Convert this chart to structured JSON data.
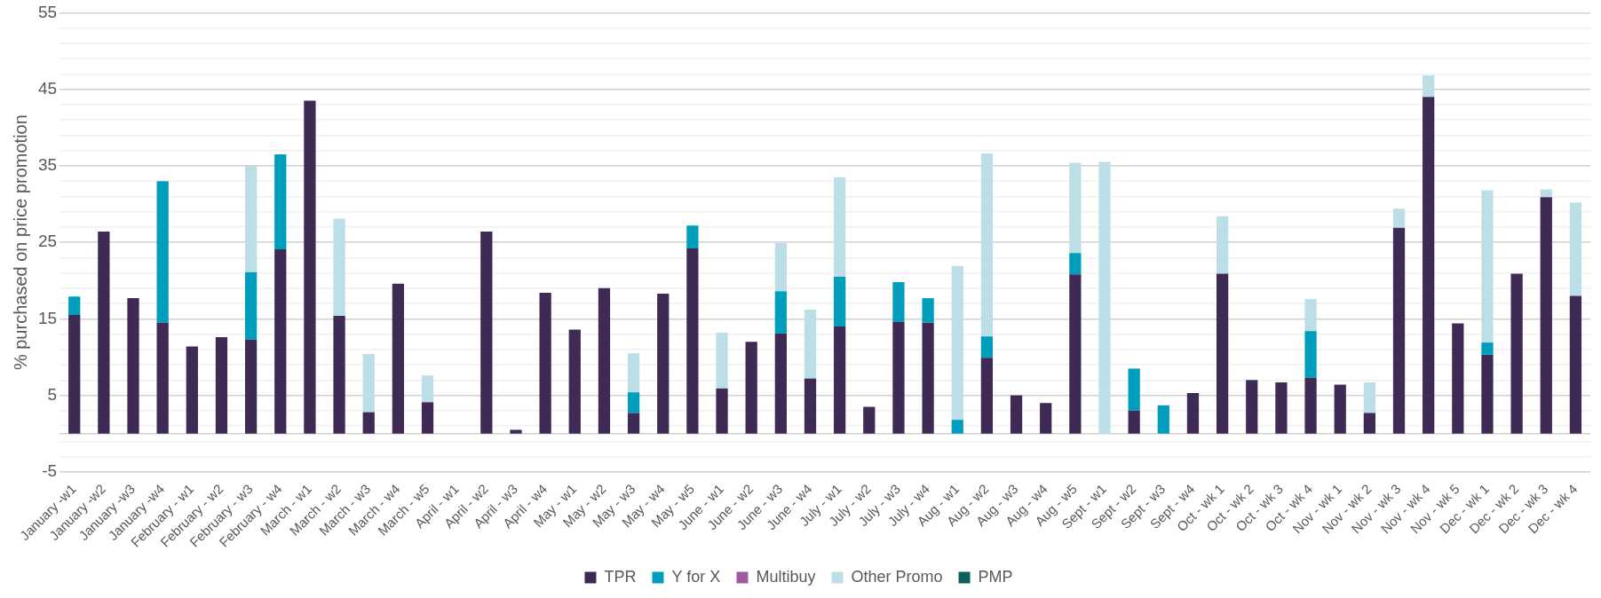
{
  "chart_data": {
    "type": "bar",
    "stacked": true,
    "ylabel": "% purchased on price promotion",
    "categories": [
      "January -w1",
      "January -w2",
      "January -w3",
      "January -w4",
      "February - w1",
      "February - w2",
      "February - w3",
      "February - w4",
      "March - w1",
      "March - w2",
      "March - w3",
      "March - w4",
      "March - w5",
      "April - w1",
      "April - w2",
      "April - w3",
      "April - w4",
      "May - w1",
      "May - w2",
      "May - w3",
      "May - w4",
      "May - w5",
      "June - w1",
      "June - w2",
      "June - w3",
      "June - w4",
      "July - w1",
      "July - w2",
      "July - w3",
      "July - w4",
      "Aug - w1",
      "Aug - w2",
      "Aug - w3",
      "Aug - w4",
      "Aug - w5",
      "Sept - w1",
      "Sept - w2",
      "Sept - w3",
      "Sept - w4",
      "Oct - wk 1",
      "Oct - wk 2",
      "Oct - wk 3",
      "Oct - wk 4",
      "Nov - wk 1",
      "Nov - wk 2",
      "Nov - wk 3",
      "Nov - wk 4",
      "Nov - wk 5",
      "Dec - wk 1",
      "Dec - wk 2",
      "Dec - wk 3",
      "Dec - wk 4"
    ],
    "series": [
      {
        "name": "TPR",
        "color": "#3f2a56",
        "values": [
          15.5,
          26.4,
          17.7,
          14.5,
          11.4,
          12.6,
          12.3,
          24.1,
          43.5,
          15.4,
          2.8,
          19.6,
          4.1,
          0,
          26.4,
          0.5,
          18.4,
          13.6,
          19.0,
          2.7,
          18.3,
          24.2,
          5.9,
          12.0,
          13.1,
          7.2,
          14.0,
          3.5,
          14.6,
          14.5,
          0,
          9.9,
          5.0,
          4.0,
          20.8,
          0,
          3.0,
          0,
          5.3,
          20.9,
          7.0,
          6.7,
          7.3,
          6.4,
          2.7,
          26.9,
          44.0,
          14.4,
          10.3,
          20.9,
          30.9,
          18.0
        ]
      },
      {
        "name": "Y for X",
        "color": "#009ebd",
        "values": [
          2.4,
          0,
          0,
          18.5,
          0,
          0,
          8.8,
          12.4,
          0,
          0,
          0,
          0,
          0,
          0,
          0,
          0,
          0,
          0,
          0,
          2.7,
          0,
          3.0,
          0,
          0,
          5.5,
          0,
          6.5,
          0,
          5.2,
          3.2,
          1.8,
          2.8,
          0,
          0,
          2.8,
          0,
          5.5,
          3.7,
          0,
          0,
          0,
          0,
          6.1,
          0,
          0,
          0,
          0,
          0,
          1.6,
          0,
          0,
          0
        ]
      },
      {
        "name": "Multibuy",
        "color": "#a05ba0",
        "values": [
          0,
          0,
          0,
          0,
          0,
          0,
          0,
          0,
          0,
          0,
          0,
          0,
          0,
          0,
          0,
          0,
          0,
          0,
          0,
          0,
          0,
          0,
          0,
          0,
          0,
          0,
          0,
          0,
          0,
          0,
          0,
          0,
          0,
          0,
          0,
          0,
          0,
          0,
          0,
          0,
          0,
          0,
          0,
          0,
          0,
          0,
          0,
          0,
          0,
          0,
          0,
          0
        ]
      },
      {
        "name": "Other Promo",
        "color": "#bcdee6",
        "values": [
          0,
          0,
          0,
          0,
          0,
          0,
          13.9,
          0,
          0,
          12.7,
          7.6,
          0,
          3.5,
          0,
          0,
          0,
          0,
          0,
          0,
          5.1,
          0,
          0,
          7.3,
          0,
          6.3,
          9.0,
          13.0,
          0,
          0,
          0,
          20.1,
          23.9,
          0,
          0,
          11.8,
          35.5,
          0,
          0,
          0,
          7.5,
          0,
          0,
          4.2,
          0,
          4.0,
          2.5,
          2.8,
          0,
          19.9,
          0,
          1.0,
          12.2
        ]
      },
      {
        "name": "PMP",
        "color": "#0e5e5a",
        "values": [
          0,
          0,
          0,
          0,
          0,
          0,
          0,
          0,
          0,
          0,
          0,
          0,
          0,
          0,
          0,
          0,
          0,
          0,
          0,
          0,
          0,
          0,
          0,
          0,
          0,
          0,
          0,
          0,
          0,
          0,
          0,
          0,
          0,
          0,
          0,
          0,
          0,
          0,
          0,
          0,
          0,
          0,
          0,
          0,
          0,
          0,
          0,
          0,
          0,
          0,
          0,
          0
        ]
      }
    ],
    "ylim": [
      -5,
      55
    ],
    "yticks": [
      -5,
      {
        "value": -3,
        "label": null
      },
      {
        "value": -1,
        "label": null
      },
      {
        "value": 1,
        "label": null
      },
      {
        "value": 3,
        "label": null
      },
      5,
      {
        "value": 7,
        "label": null
      },
      {
        "value": 9,
        "label": null
      },
      {
        "value": 11,
        "label": null
      },
      {
        "value": 13,
        "label": null
      },
      15,
      {
        "value": 17,
        "label": null
      },
      {
        "value": 19,
        "label": null
      },
      {
        "value": 21,
        "label": null
      },
      {
        "value": 23,
        "label": null
      },
      25,
      {
        "value": 27,
        "label": null
      },
      {
        "value": 29,
        "label": null
      },
      {
        "value": 31,
        "label": null
      },
      {
        "value": 33,
        "label": null
      },
      35,
      {
        "value": 37,
        "label": null
      },
      {
        "value": 39,
        "label": null
      },
      {
        "value": 41,
        "label": null
      },
      {
        "value": 43,
        "label": null
      },
      45,
      {
        "value": 47,
        "label": null
      },
      {
        "value": 49,
        "label": null
      },
      {
        "value": 51,
        "label": null
      },
      {
        "value": 53,
        "label": null
      },
      55
    ],
    "grid": "y",
    "legend": "bottom"
  }
}
